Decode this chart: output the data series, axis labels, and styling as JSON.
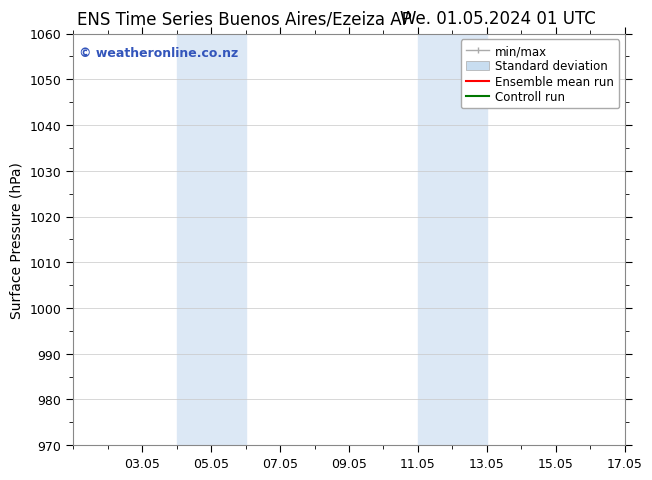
{
  "title_left": "ENS Time Series Buenos Aires/Ezeiza AP",
  "title_right": "We. 01.05.2024 01 UTC",
  "ylabel": "Surface Pressure (hPa)",
  "ylim": [
    970,
    1060
  ],
  "yticks": [
    970,
    980,
    990,
    1000,
    1010,
    1020,
    1030,
    1040,
    1050,
    1060
  ],
  "xlim": [
    1,
    17
  ],
  "xtick_labels": [
    "03.05",
    "05.05",
    "07.05",
    "09.05",
    "11.05",
    "13.05",
    "15.05",
    "17.05"
  ],
  "xtick_positions": [
    3,
    5,
    7,
    9,
    11,
    13,
    15,
    17
  ],
  "shaded_regions": [
    {
      "start": 4,
      "end": 6,
      "color": "#dce8f5"
    },
    {
      "start": 11,
      "end": 13,
      "color": "#dce8f5"
    }
  ],
  "watermark_text": "© weatheronline.co.nz",
  "watermark_color": "#3355bb",
  "background_color": "#ffffff",
  "plot_bg_color": "#ffffff",
  "grid_color": "#c8c8c8",
  "legend_items": [
    {
      "label": "min/max",
      "color": "#aaaaaa",
      "lw": 1,
      "style": "solid"
    },
    {
      "label": "Standard deviation",
      "color": "#c8ddf0",
      "lw": 6,
      "style": "solid"
    },
    {
      "label": "Ensemble mean run",
      "color": "#ff0000",
      "lw": 1.5,
      "style": "solid"
    },
    {
      "label": "Controll run",
      "color": "#007700",
      "lw": 1.5,
      "style": "solid"
    }
  ],
  "title_fontsize": 12,
  "axis_label_fontsize": 10,
  "tick_fontsize": 9,
  "legend_fontsize": 8.5,
  "watermark_fontsize": 9
}
